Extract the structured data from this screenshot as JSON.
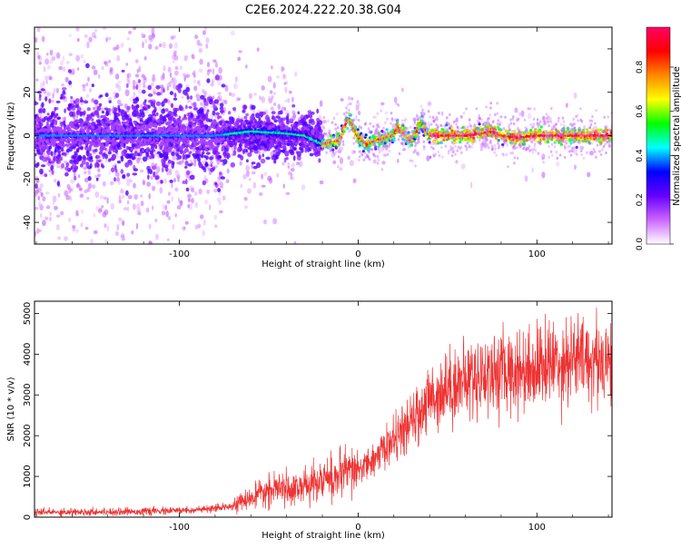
{
  "title": "C2E6.2024.222.20.38.G04",
  "colors": {
    "snr_line": "#ee3333",
    "axis": "#000000"
  },
  "chart_data": [
    {
      "type": "heatmap",
      "title": "",
      "xlabel": "Height of straight line (km)",
      "ylabel": "Frequency (Hz)",
      "xlim": [
        -181,
        142
      ],
      "ylim": [
        -50,
        50
      ],
      "xticks": [
        -100,
        0,
        100
      ],
      "yticks": [
        -40,
        -20,
        0,
        20,
        40
      ],
      "colorbar": {
        "label": "Normalized spectral amplitude",
        "range": [
          0,
          1
        ],
        "ticks": [
          "0.0",
          "0.2",
          "0.4",
          "0.6",
          "0.8"
        ],
        "colormap": [
          "#ffffff",
          "#cc66ff",
          "#6600ff",
          "#0000ff",
          "#00ffff",
          "#00ff00",
          "#ffff00",
          "#ff8800",
          "#ff0000",
          "#ff0066"
        ]
      },
      "ridge": {
        "description_points_x": [
          -181,
          -150,
          -120,
          -100,
          -80,
          -60,
          -40,
          -30,
          -20,
          -10,
          -8,
          -5,
          0,
          5,
          10,
          20,
          22,
          30,
          35,
          40,
          50,
          60,
          70,
          75,
          80,
          90,
          100,
          110,
          120,
          130,
          142
        ],
        "description_points_y": [
          0,
          0,
          0,
          0,
          0,
          2,
          1,
          0,
          -4,
          -2,
          4,
          8,
          -1,
          -4,
          -2,
          0,
          4,
          -3,
          6,
          0,
          0,
          0,
          1,
          2,
          0,
          -1,
          0,
          0,
          0,
          0,
          0
        ]
      }
    },
    {
      "type": "line",
      "title": "",
      "xlabel": "Height of straight line (km)",
      "ylabel": "SNR (10 * v/v)",
      "xlim": [
        -181,
        142
      ],
      "ylim": [
        0,
        5300
      ],
      "xticks": [
        -100,
        0,
        100
      ],
      "yticks": [
        0,
        1000,
        2000,
        3000,
        4000,
        5000
      ],
      "trend_x": [
        -181,
        -150,
        -120,
        -100,
        -80,
        -70,
        -60,
        -50,
        -40,
        -30,
        -20,
        -10,
        0,
        10,
        20,
        30,
        40,
        50,
        60,
        70,
        80,
        90,
        100,
        110,
        120,
        130,
        142
      ],
      "trend_y": [
        120,
        130,
        140,
        160,
        200,
        300,
        450,
        650,
        700,
        750,
        900,
        1000,
        1150,
        1450,
        1900,
        2300,
        2900,
        3200,
        3350,
        3500,
        3550,
        3600,
        3700,
        3800,
        3900,
        3850,
        3900
      ]
    }
  ]
}
